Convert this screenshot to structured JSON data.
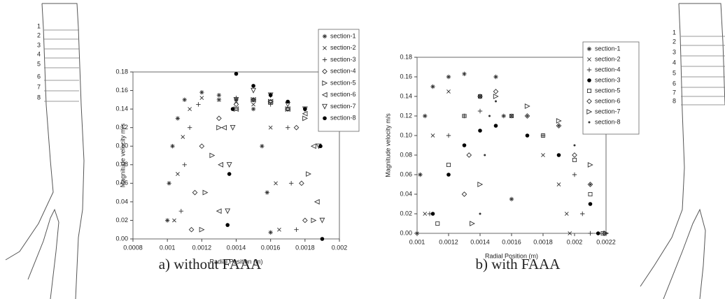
{
  "chart_data": [
    {
      "type": "scatter",
      "xlabel": "Radial Position (m)",
      "ylabel": "Magnitude velocity m/s",
      "caption": "a) without FAAA",
      "xlim": [
        0.0008,
        0.002
      ],
      "xticks": [
        0.0008,
        0.001,
        0.0012,
        0.0014,
        0.0016,
        0.0018,
        0.002
      ],
      "ylim": [
        0,
        0.18
      ],
      "yticks": [
        {
          "value": 0,
          "label": "0.00"
        },
        {
          "value": 0.02,
          "label": "0.02"
        },
        {
          "value": 0.04,
          "label": "0.04"
        },
        {
          "value": 0.06,
          "label": "0.06"
        },
        {
          "value": 0.08,
          "label": "0.08"
        },
        {
          "value": 0.1,
          "label": "0.10"
        },
        {
          "value": 0.12,
          "label": "0.12"
        },
        {
          "value": 0.14,
          "label": "0.14"
        },
        {
          "value": 0.16,
          "label": "0.16"
        },
        {
          "value": 0.18,
          "label": "0.18"
        }
      ],
      "legend": "upper right",
      "series": [
        {
          "name": "section-1",
          "marker": "asterisk",
          "color": "#333333",
          "x": [
            0.001,
            0.00101,
            0.00103,
            0.00106,
            0.0011,
            0.0012,
            0.0013,
            0.0014,
            0.0015,
            0.00155,
            0.00158,
            0.0016
          ],
          "values": [
            0.02,
            0.06,
            0.1,
            0.13,
            0.15,
            0.158,
            0.155,
            0.15,
            0.14,
            0.1,
            0.05,
            0.007
          ]
        },
        {
          "name": "section-2",
          "marker": "cross",
          "color": "#333333",
          "x": [
            0.00104,
            0.00106,
            0.00109,
            0.00113,
            0.0012,
            0.0013,
            0.0014,
            0.0015,
            0.0016,
            0.00163,
            0.00165
          ],
          "values": [
            0.02,
            0.07,
            0.11,
            0.14,
            0.152,
            0.15,
            0.148,
            0.145,
            0.12,
            0.06,
            0.01
          ]
        },
        {
          "name": "section-3",
          "marker": "plus",
          "color": "#333333",
          "x": [
            0.00108,
            0.0011,
            0.00113,
            0.00118,
            0.0013,
            0.0014,
            0.0015,
            0.0016,
            0.0017,
            0.00172,
            0.00175
          ],
          "values": [
            0.03,
            0.08,
            0.12,
            0.145,
            0.15,
            0.152,
            0.15,
            0.145,
            0.12,
            0.06,
            0.01
          ]
        },
        {
          "name": "section-4",
          "marker": "diamond",
          "color": "#333333",
          "x": [
            0.00114,
            0.00116,
            0.0012,
            0.0013,
            0.0014,
            0.0015,
            0.0016,
            0.0017,
            0.00175,
            0.00178,
            0.0018
          ],
          "values": [
            0.01,
            0.05,
            0.1,
            0.13,
            0.145,
            0.15,
            0.148,
            0.14,
            0.12,
            0.06,
            0.02
          ]
        },
        {
          "name": "section-5",
          "marker": "tri-right",
          "color": "#333333",
          "x": [
            0.0012,
            0.00122,
            0.00126,
            0.0013,
            0.0014,
            0.0015,
            0.0016,
            0.0017,
            0.0018,
            0.00182,
            0.00185
          ],
          "values": [
            0.01,
            0.05,
            0.09,
            0.12,
            0.14,
            0.15,
            0.148,
            0.14,
            0.13,
            0.07,
            0.02
          ]
        },
        {
          "name": "section-6",
          "marker": "tri-left",
          "color": "#333333",
          "x": [
            0.0013,
            0.00131,
            0.00133,
            0.0014,
            0.0015,
            0.0016,
            0.0017,
            0.0018,
            0.00185,
            0.00187
          ],
          "values": [
            0.03,
            0.08,
            0.12,
            0.14,
            0.15,
            0.148,
            0.14,
            0.135,
            0.1,
            0.04
          ]
        },
        {
          "name": "section-7",
          "marker": "tri-down",
          "color": "#333333",
          "x": [
            0.00135,
            0.00136,
            0.00138,
            0.0014,
            0.0015,
            0.0016,
            0.0017,
            0.0018,
            0.00188,
            0.0019
          ],
          "values": [
            0.03,
            0.08,
            0.12,
            0.15,
            0.16,
            0.155,
            0.145,
            0.14,
            0.1,
            0.02
          ]
        },
        {
          "name": "section-8",
          "marker": "dot",
          "color": "#000000",
          "x": [
            0.00135,
            0.00136,
            0.00138,
            0.0014,
            0.0015,
            0.0016,
            0.0017,
            0.0018,
            0.00189,
            0.0019
          ],
          "values": [
            0.015,
            0.07,
            0.14,
            0.178,
            0.165,
            0.155,
            0.148,
            0.14,
            0.1,
            0
          ]
        }
      ]
    },
    {
      "type": "scatter",
      "xlabel": "Radial Position (m)",
      "ylabel": "Magnitude velocity m/s",
      "caption": "b) with FAAA",
      "xlim": [
        0.001,
        0.0022
      ],
      "xticks": [
        0.001,
        0.0012,
        0.0014,
        0.0016,
        0.0018,
        0.002,
        0.0022
      ],
      "ylim": [
        0,
        0.18
      ],
      "yticks": [
        {
          "value": 0,
          "label": "0.00"
        },
        {
          "value": 0.02,
          "label": "0.02"
        },
        {
          "value": 0.04,
          "label": "0.04"
        },
        {
          "value": 0.06,
          "label": "0.06"
        },
        {
          "value": 0.08,
          "label": "0.08"
        },
        {
          "value": 0.1,
          "label": "0.10"
        },
        {
          "value": 0.12,
          "label": "0.12"
        },
        {
          "value": 0.14,
          "label": "0.14"
        },
        {
          "value": 0.16,
          "label": "0.16"
        },
        {
          "value": 0.18,
          "label": "0.18"
        }
      ],
      "legend": "upper right",
      "series": [
        {
          "name": "section-1",
          "marker": "asterisk",
          "color": "#333333",
          "x": [
            0.001,
            0.00102,
            0.00105,
            0.0011,
            0.0012,
            0.0013,
            0.0014,
            0.0015,
            0.00155,
            0.0016
          ],
          "values": [
            0,
            0.06,
            0.12,
            0.15,
            0.16,
            0.163,
            0.14,
            0.16,
            0.12,
            0.035
          ]
        },
        {
          "name": "section-2",
          "marker": "cross",
          "color": "#333333",
          "x": [
            0.00105,
            0.0011,
            0.0012,
            0.0014,
            0.0016,
            0.0018,
            0.0019,
            0.00195,
            0.00197
          ],
          "values": [
            0.02,
            0.1,
            0.145,
            0.14,
            0.12,
            0.08,
            0.05,
            0.02,
            0
          ]
        },
        {
          "name": "section-4",
          "marker": "plus",
          "color": "#333333",
          "x": [
            0.00108,
            0.0012,
            0.0013,
            0.0014,
            0.0016,
            0.0018,
            0.002,
            0.00205,
            0.0021
          ],
          "values": [
            0.02,
            0.1,
            0.12,
            0.125,
            0.12,
            0.1,
            0.06,
            0.02,
            0
          ]
        },
        {
          "name": "section-3",
          "marker": "dot",
          "color": "#000000",
          "x": [
            0.0011,
            0.0012,
            0.0013,
            0.0014,
            0.0015,
            0.0017,
            0.0019,
            0.0021,
            0.00215
          ],
          "values": [
            0.02,
            0.06,
            0.09,
            0.105,
            0.11,
            0.1,
            0.08,
            0.03,
            0
          ]
        },
        {
          "name": "section-5",
          "marker": "square",
          "color": "#333333",
          "x": [
            0.00113,
            0.0012,
            0.0013,
            0.0014,
            0.0016,
            0.0018,
            0.002,
            0.0021,
            0.00218
          ],
          "values": [
            0.01,
            0.07,
            0.12,
            0.14,
            0.12,
            0.1,
            0.075,
            0.04,
            0
          ]
        },
        {
          "name": "section-6",
          "marker": "diamond",
          "color": "#333333",
          "x": [
            0.0013,
            0.00133,
            0.0014,
            0.0015,
            0.0017,
            0.0019,
            0.002,
            0.0021,
            0.00219
          ],
          "values": [
            0.04,
            0.08,
            0.14,
            0.145,
            0.12,
            0.11,
            0.08,
            0.05,
            0
          ]
        },
        {
          "name": "section-7",
          "marker": "tri-right",
          "color": "#333333",
          "x": [
            0.00135,
            0.0014,
            0.0015,
            0.0017,
            0.0019,
            0.0021,
            0.0022
          ],
          "values": [
            0.01,
            0.05,
            0.14,
            0.13,
            0.115,
            0.07,
            0
          ]
        },
        {
          "name": "section-8",
          "marker": "small-dot",
          "color": "#333333",
          "x": [
            0.0014,
            0.00143,
            0.00146,
            0.0015,
            0.0017,
            0.0019,
            0.002,
            0.0021,
            0.0022
          ],
          "values": [
            0.02,
            0.08,
            0.12,
            0.135,
            0.12,
            0.11,
            0.09,
            0.05,
            0
          ]
        }
      ]
    }
  ],
  "diagrams": [
    {
      "section_labels": [
        "1",
        "2",
        "3",
        "4",
        "5",
        "6",
        "7",
        "8"
      ]
    },
    {
      "section_labels": [
        "1",
        "2",
        "3",
        "4",
        "5",
        "6",
        "7",
        "8"
      ]
    }
  ]
}
